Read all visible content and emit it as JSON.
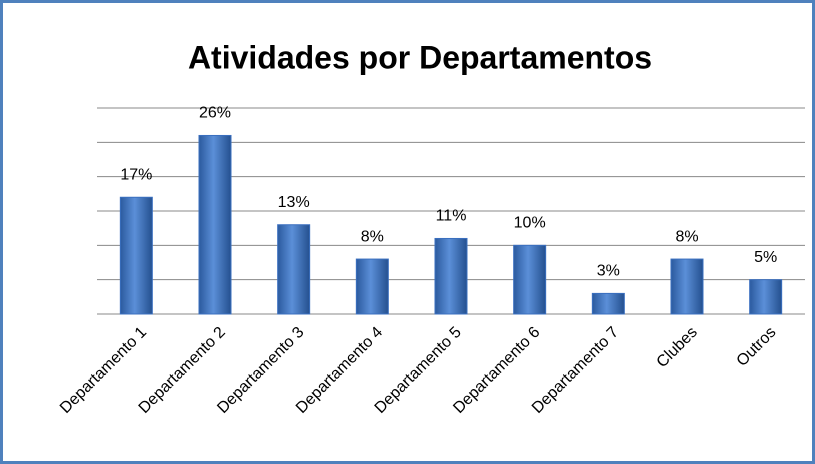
{
  "chart_data": {
    "type": "bar",
    "title": "Atividades por Departamentos",
    "categories": [
      "Departamento 1",
      "Departamento 2",
      "Departamento 3",
      "Departamento 4",
      "Departamento 5",
      "Departamento 6",
      "Departamento 7",
      "Clubes",
      "Outros"
    ],
    "values": [
      17,
      26,
      13,
      8,
      11,
      10,
      3,
      8,
      5
    ],
    "value_labels": [
      "17%",
      "26%",
      "13%",
      "8%",
      "11%",
      "10%",
      "3%",
      "8%",
      "5%"
    ],
    "color": "#3a6fbf",
    "ylim": [
      0,
      30
    ],
    "yticks": [
      0,
      5,
      10,
      15,
      20,
      25,
      30
    ],
    "grid": true
  }
}
